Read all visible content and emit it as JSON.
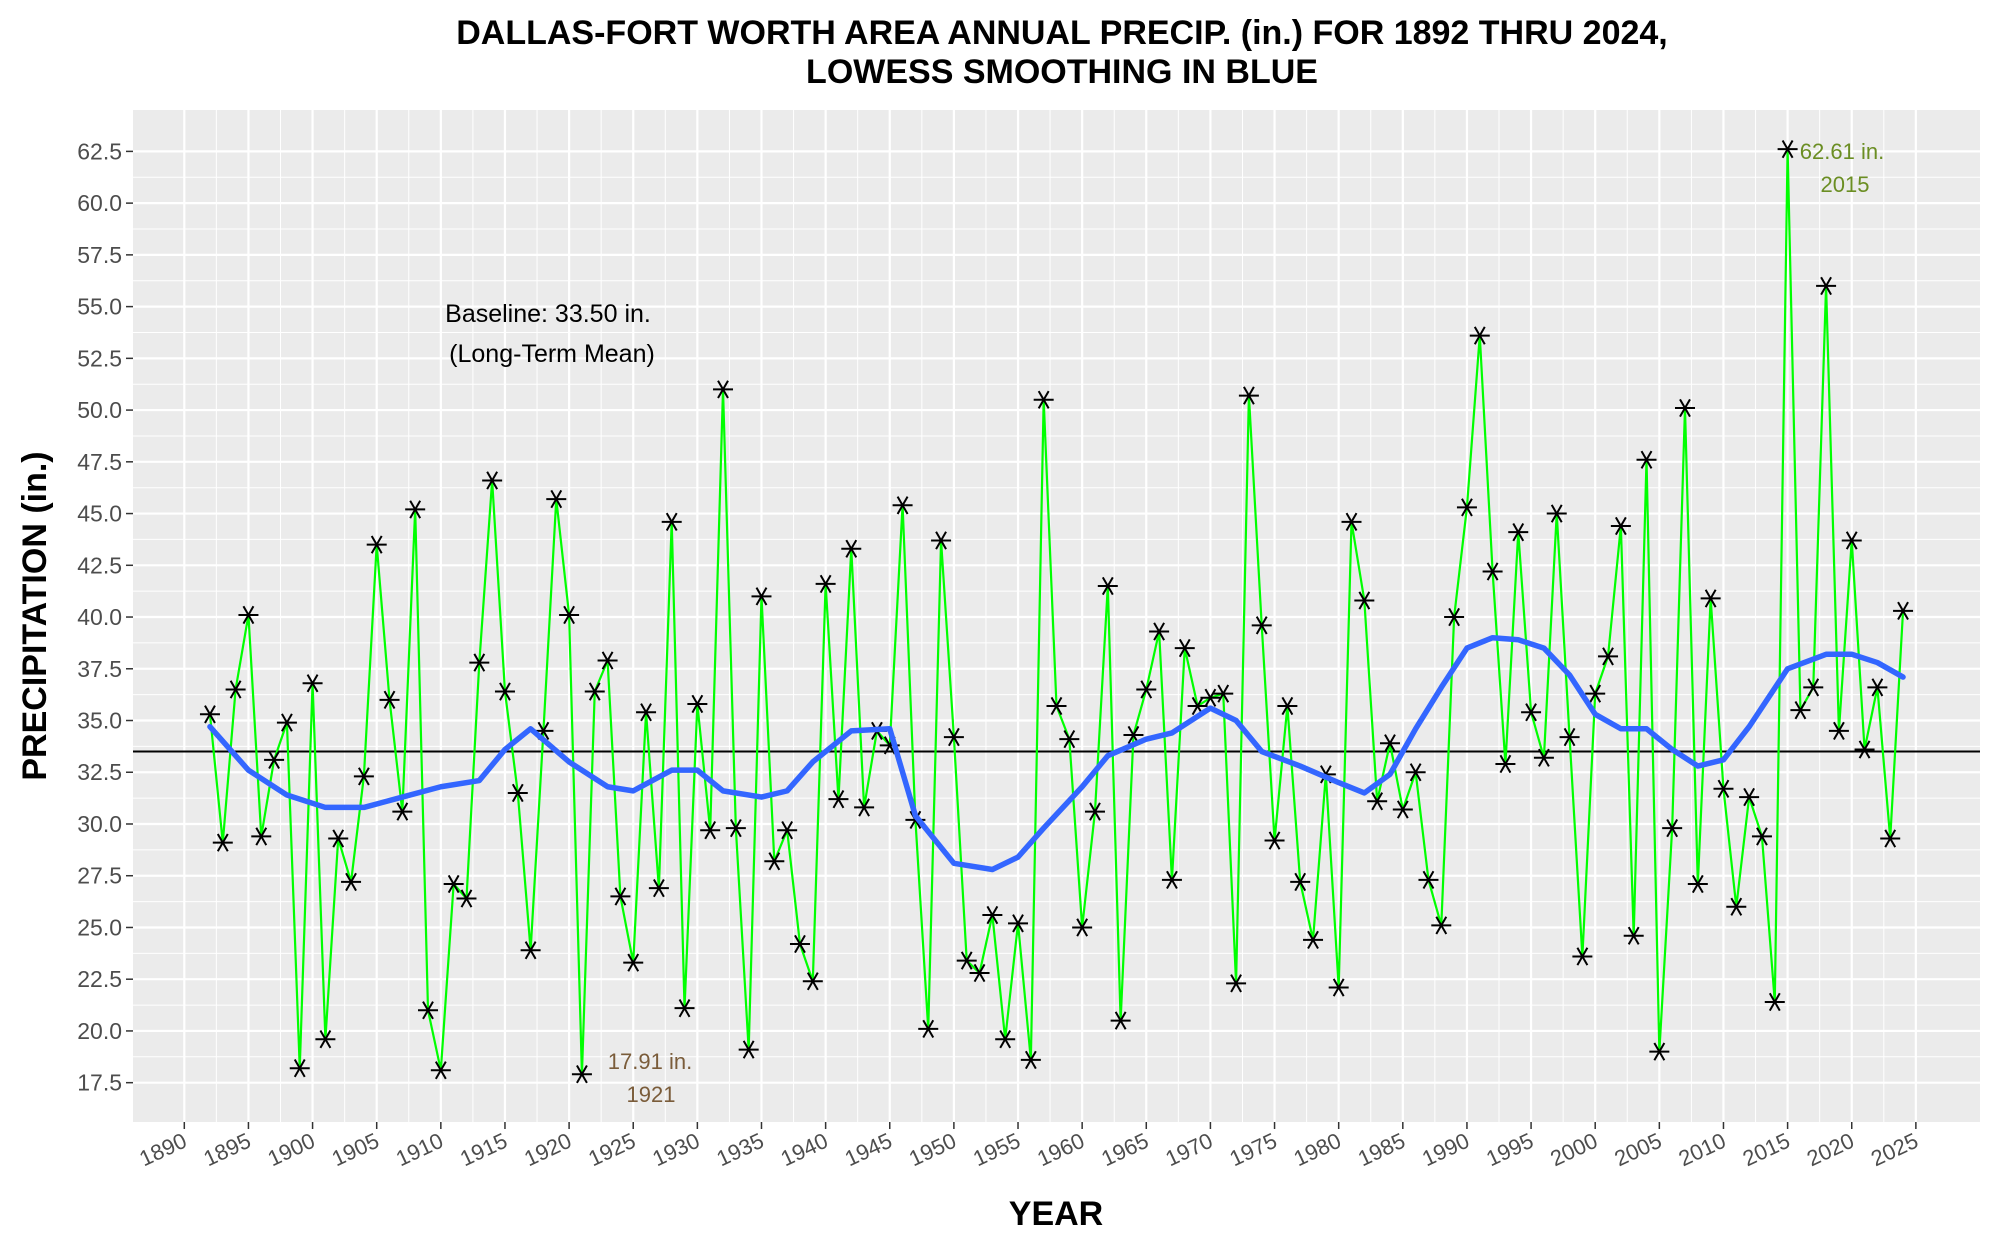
{
  "chart_data": {
    "type": "line",
    "title_line1": "DALLAS-FORT WORTH AREA ANNUAL PRECIP. (in.) FOR 1892 THRU 2024,",
    "title_line2": "LOWESS SMOOTHING IN BLUE",
    "xlabel": "YEAR",
    "ylabel": "PRECIPITATION (in.)",
    "xlim": [
      1886,
      2030
    ],
    "ylim": [
      15.6,
      64.5
    ],
    "x_ticks": [
      1890,
      1895,
      1900,
      1905,
      1910,
      1915,
      1920,
      1925,
      1930,
      1935,
      1940,
      1945,
      1950,
      1955,
      1960,
      1965,
      1970,
      1975,
      1980,
      1985,
      1990,
      1995,
      2000,
      2005,
      2010,
      2015,
      2020,
      2025
    ],
    "y_ticks": [
      17.5,
      20.0,
      22.5,
      25.0,
      27.5,
      30.0,
      32.5,
      35.0,
      37.5,
      40.0,
      42.5,
      45.0,
      47.5,
      50.0,
      52.5,
      55.0,
      57.5,
      60.0,
      62.5
    ],
    "baseline": 33.5,
    "baseline_label_line1": "Baseline: 33.50 in.",
    "baseline_label_line2": "(Long-Term Mean)",
    "grid": true,
    "colors": {
      "panel_bg": "#ebebeb",
      "grid": "#ffffff",
      "series_line": "#00ff00",
      "points": "#000000",
      "smooth": "#3366ff",
      "baseline": "#000000",
      "max_annotation": "#6b8e23",
      "min_annotation": "#7a5c3a"
    },
    "series": [
      {
        "x": [
          1892,
          1893,
          1894,
          1895,
          1896,
          1897,
          1898,
          1899,
          1900,
          1901,
          1902,
          1903,
          1904,
          1905,
          1906,
          1907,
          1908,
          1909,
          1910,
          1911,
          1912,
          1913,
          1914,
          1915,
          1916,
          1917,
          1918,
          1919,
          1920,
          1921,
          1922,
          1923,
          1924,
          1925,
          1926,
          1927,
          1928,
          1929,
          1930,
          1931,
          1932,
          1933,
          1934,
          1935,
          1936,
          1937,
          1938,
          1939,
          1940,
          1941,
          1942,
          1943,
          1944,
          1945,
          1946,
          1947,
          1948,
          1949,
          1950,
          1951,
          1952,
          1953,
          1954,
          1955,
          1956,
          1957,
          1958,
          1959,
          1960,
          1961,
          1962,
          1963,
          1964,
          1965,
          1966,
          1967,
          1968,
          1969,
          1970,
          1971,
          1972,
          1973,
          1974,
          1975,
          1976,
          1977,
          1978,
          1979,
          1980,
          1981,
          1982,
          1983,
          1984,
          1985,
          1986,
          1987,
          1988,
          1989,
          1990,
          1991,
          1992,
          1993,
          1994,
          1995,
          1996,
          1997,
          1998,
          1999,
          2000,
          2001,
          2002,
          2003,
          2004,
          2005,
          2006,
          2007,
          2008,
          2009,
          2010,
          2011,
          2012,
          2013,
          2014,
          2015,
          2016,
          2017,
          2018,
          2019,
          2020,
          2021,
          2022,
          2023,
          2024
        ],
        "y": [
          35.3,
          29.1,
          36.5,
          40.1,
          29.4,
          33.1,
          34.9,
          18.2,
          36.8,
          19.6,
          29.3,
          27.2,
          32.3,
          43.5,
          36.0,
          30.6,
          45.2,
          21.0,
          18.1,
          27.1,
          26.4,
          37.8,
          46.6,
          36.4,
          31.5,
          23.9,
          34.5,
          45.7,
          40.1,
          17.91,
          36.4,
          37.9,
          26.5,
          23.3,
          35.4,
          26.9,
          44.6,
          21.1,
          35.8,
          29.7,
          51.0,
          29.8,
          19.1,
          41.0,
          28.2,
          29.7,
          24.2,
          22.4,
          41.6,
          31.2,
          43.3,
          30.8,
          34.5,
          33.8,
          45.4,
          30.2,
          20.1,
          43.7,
          34.2,
          23.4,
          22.8,
          25.6,
          19.6,
          25.2,
          18.6,
          50.5,
          35.7,
          34.1,
          25.0,
          30.6,
          41.5,
          20.5,
          34.3,
          36.5,
          39.3,
          27.3,
          38.5,
          35.7,
          36.1,
          36.3,
          22.3,
          50.7,
          39.6,
          29.2,
          35.7,
          27.2,
          24.4,
          32.4,
          22.1,
          44.6,
          40.8,
          31.1,
          33.9,
          30.7,
          32.5,
          27.3,
          25.1,
          40.0,
          45.3,
          53.6,
          42.2,
          32.9,
          44.1,
          35.4,
          33.2,
          45.0,
          34.2,
          23.6,
          36.3,
          38.1,
          44.4,
          24.6,
          47.6,
          19.0,
          29.8,
          50.1,
          27.1,
          40.9,
          31.7,
          26.0,
          31.3,
          29.4,
          21.4,
          62.61,
          35.5,
          36.6,
          56.0,
          34.5,
          43.7,
          33.6,
          36.6,
          29.3,
          40.3
        ]
      }
    ],
    "smooth": {
      "x": [
        1892,
        1895,
        1898,
        1901,
        1904,
        1907,
        1910,
        1913,
        1915,
        1917,
        1920,
        1923,
        1925,
        1928,
        1930,
        1932,
        1935,
        1937,
        1939,
        1942,
        1945,
        1947,
        1950,
        1953,
        1955,
        1957,
        1960,
        1962,
        1965,
        1967,
        1970,
        1972,
        1974,
        1977,
        1980,
        1982,
        1984,
        1986,
        1988,
        1990,
        1992,
        1994,
        1996,
        1998,
        2000,
        2002,
        2004,
        2006,
        2008,
        2010,
        2012,
        2015,
        2018,
        2020,
        2022,
        2024
      ],
      "y": [
        34.7,
        32.6,
        31.4,
        30.8,
        30.8,
        31.3,
        31.8,
        32.1,
        33.6,
        34.6,
        33.0,
        31.8,
        31.6,
        32.6,
        32.6,
        31.6,
        31.3,
        31.6,
        33.0,
        34.5,
        34.6,
        30.4,
        28.1,
        27.8,
        28.4,
        29.8,
        31.8,
        33.3,
        34.1,
        34.4,
        35.6,
        35.0,
        33.5,
        32.8,
        32.0,
        31.5,
        32.4,
        34.6,
        36.6,
        38.5,
        39.0,
        38.9,
        38.5,
        37.2,
        35.3,
        34.6,
        34.6,
        33.6,
        32.8,
        33.1,
        34.7,
        37.5,
        38.2,
        38.2,
        37.8,
        37.1
      ]
    },
    "annotations": {
      "max_value": "62.61 in.",
      "max_year": "2015",
      "min_value": "17.91 in.",
      "min_year": "1921"
    }
  }
}
